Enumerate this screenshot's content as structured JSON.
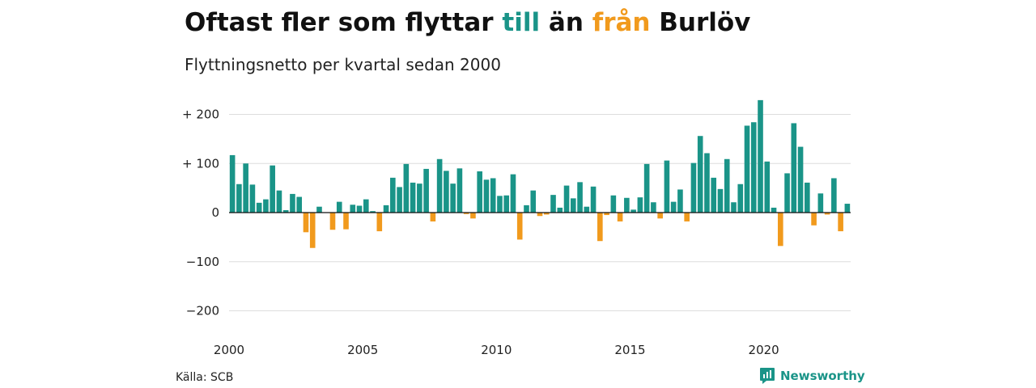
{
  "title": {
    "part1": "Oftast fler som flyttar",
    "highlight_pos": "till",
    "part2": "än",
    "highlight_neg": "från",
    "part3": "Burlöv"
  },
  "subtitle": "Flyttningsnetto per kvartal sedan 2000",
  "source": "Källa: SCB",
  "brand": {
    "name": "Newsworthy",
    "icon": "newsworthy-logo-icon"
  },
  "colors": {
    "positive": "#1a9488",
    "negative": "#f19a1d",
    "brand": "#1a9488",
    "gridline": "#dddddd",
    "zeroline": "#111111"
  },
  "chart_data": {
    "type": "bar",
    "title": "Oftast fler som flyttar till än från Burlöv",
    "subtitle": "Flyttningsnetto per kvartal sedan 2000",
    "xlabel": "",
    "ylabel": "",
    "x_start": "2000-Q1",
    "x_ticks": [
      "2000",
      "2005",
      "2010",
      "2015",
      "2020"
    ],
    "y_ticks": [
      {
        "value": 200,
        "label": "+ 200"
      },
      {
        "value": 100,
        "label": "+ 100"
      },
      {
        "value": 0,
        "label": "0"
      },
      {
        "value": -100,
        "label": "−100"
      },
      {
        "value": -200,
        "label": "−200"
      }
    ],
    "ylim": [
      -200,
      230
    ],
    "grid": true,
    "values": [
      117,
      58,
      100,
      57,
      20,
      27,
      96,
      45,
      5,
      38,
      32,
      -40,
      -72,
      12,
      0,
      -35,
      22,
      -34,
      16,
      14,
      27,
      3,
      -38,
      15,
      71,
      52,
      99,
      61,
      59,
      89,
      -18,
      109,
      85,
      59,
      90,
      -3,
      -12,
      84,
      67,
      70,
      34,
      35,
      78,
      -55,
      15,
      45,
      -7,
      -4,
      36,
      10,
      55,
      29,
      62,
      12,
      53,
      -58,
      -5,
      35,
      -18,
      30,
      6,
      31,
      99,
      21,
      -12,
      106,
      22,
      47,
      -18,
      101,
      156,
      121,
      71,
      48,
      109,
      21,
      58,
      177,
      184,
      229,
      104,
      10,
      -68,
      80,
      182,
      134,
      61,
      -26,
      39,
      -4,
      70,
      -38,
      18
    ]
  }
}
